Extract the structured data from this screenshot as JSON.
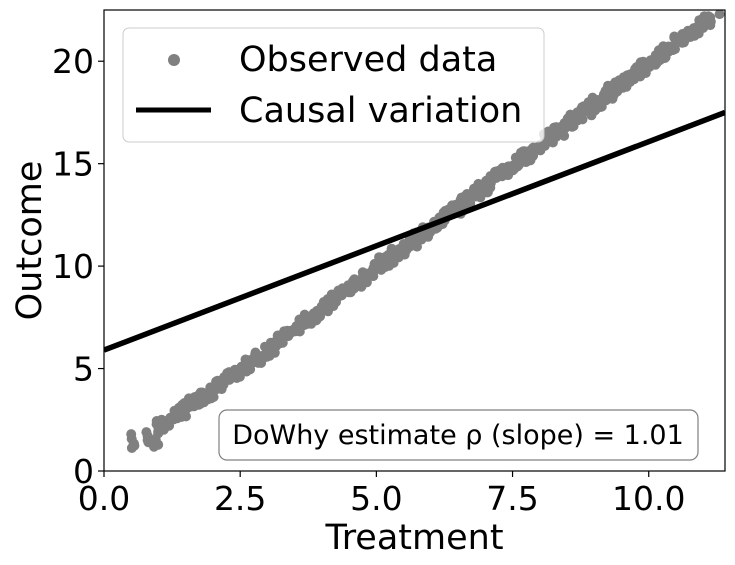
{
  "chart_data": {
    "type": "scatter",
    "title": "",
    "xlabel": "Treatment",
    "ylabel": "Outcome",
    "xlim": [
      0.0,
      11.4
    ],
    "ylim": [
      0,
      22.5
    ],
    "xticks": [
      0.0,
      2.5,
      5.0,
      7.5,
      10.0
    ],
    "xtick_labels": [
      "0.0",
      "2.5",
      "5.0",
      "7.5",
      "10.0"
    ],
    "yticks": [
      0,
      5,
      10,
      15,
      20
    ],
    "ytick_labels": [
      "0",
      "5",
      "10",
      "15",
      "20"
    ],
    "grid": false,
    "series": [
      {
        "name": "Observed data",
        "kind": "scatter",
        "color": "#808080",
        "x": [
          0.5,
          0.55,
          0.8,
          0.95,
          1.0,
          1.1,
          1.2,
          1.3,
          1.4,
          1.5,
          1.6,
          1.7,
          1.8,
          1.9,
          2.0,
          2.1,
          2.2,
          2.3,
          2.4,
          2.5,
          2.6,
          2.7,
          2.8,
          2.9,
          3.0,
          3.1,
          3.2,
          3.3,
          3.4,
          3.5,
          3.6,
          3.7,
          3.8,
          3.9,
          4.0,
          4.1,
          4.2,
          4.3,
          4.4,
          4.5,
          4.6,
          4.7,
          4.8,
          4.9,
          5.0,
          5.1,
          5.2,
          5.3,
          5.4,
          5.5,
          5.6,
          5.7,
          5.8,
          5.9,
          6.0,
          6.1,
          6.2,
          6.3,
          6.4,
          6.5,
          6.6,
          6.7,
          6.8,
          6.9,
          7.0,
          7.1,
          7.2,
          7.3,
          7.4,
          7.5,
          7.6,
          7.7,
          7.8,
          7.9,
          8.0,
          8.1,
          8.2,
          8.3,
          8.4,
          8.5,
          8.6,
          8.7,
          8.8,
          8.9,
          9.0,
          9.1,
          9.2,
          9.3,
          9.4,
          9.5,
          9.6,
          9.7,
          9.8,
          9.9,
          10.0,
          10.1,
          10.2,
          10.3,
          10.4,
          10.5,
          10.6,
          10.7,
          10.8,
          10.9,
          11.0,
          11.1,
          11.3
        ],
        "y": [
          1.8,
          1.3,
          1.7,
          1.5,
          2.1,
          2.2,
          2.5,
          2.7,
          2.9,
          3.0,
          3.2,
          3.4,
          3.6,
          3.8,
          3.9,
          4.1,
          4.3,
          4.5,
          4.6,
          4.9,
          5.1,
          5.3,
          5.5,
          5.6,
          5.9,
          6.1,
          6.3,
          6.5,
          6.7,
          6.9,
          7.1,
          7.3,
          7.5,
          7.7,
          7.9,
          8.1,
          8.3,
          8.5,
          8.7,
          8.9,
          9.1,
          9.3,
          9.5,
          9.7,
          9.9,
          10.1,
          10.3,
          10.5,
          10.7,
          10.9,
          11.1,
          11.3,
          11.5,
          11.7,
          11.9,
          12.1,
          12.3,
          12.5,
          12.7,
          12.9,
          13.1,
          13.3,
          13.5,
          13.7,
          13.9,
          14.1,
          14.3,
          14.5,
          14.7,
          14.9,
          15.1,
          15.3,
          15.5,
          15.7,
          15.9,
          16.1,
          16.3,
          16.5,
          16.7,
          16.9,
          17.1,
          17.3,
          17.5,
          17.7,
          17.9,
          18.1,
          18.3,
          18.5,
          18.7,
          18.9,
          19.1,
          19.3,
          19.5,
          19.7,
          19.9,
          20.1,
          20.3,
          20.5,
          20.7,
          20.9,
          21.1,
          21.3,
          21.5,
          21.7,
          21.9,
          22.1,
          22.3
        ],
        "band_spread": 0.35
      },
      {
        "name": "Causal variation",
        "kind": "line",
        "color": "#000000",
        "x": [
          0.0,
          11.4
        ],
        "y": [
          5.9,
          17.5
        ]
      }
    ],
    "legend": {
      "location": "top-left",
      "entries": [
        "Observed data",
        "Causal variation"
      ]
    },
    "annotations": [
      {
        "text": "DoWhy estimate ρ (slope) = 1.01",
        "location": "bottom-right"
      }
    ]
  }
}
